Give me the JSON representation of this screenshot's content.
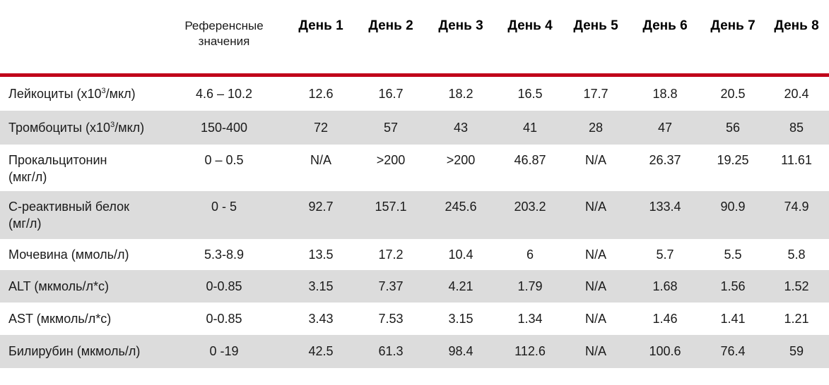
{
  "header": {
    "reference_label": "Референсные значения",
    "days": [
      "День 1",
      "День 2",
      "День 3",
      "День 4",
      "День 5",
      "День 6",
      "День 7",
      "День 8"
    ]
  },
  "rows": [
    {
      "label_pre": "Лейкоциты (x10",
      "label_sup": "3",
      "label_post": "/мкл)",
      "reference": "4.6 – 10.2",
      "values": [
        "12.6",
        "16.7",
        "18.2",
        "16.5",
        "17.7",
        "18.8",
        "20.5",
        "20.4"
      ]
    },
    {
      "label_pre": "Тромбоциты (x10",
      "label_sup": "3",
      "label_post": "/мкл)",
      "reference": "150-400",
      "values": [
        "72",
        "57",
        "43",
        "41",
        "28",
        "47",
        "56",
        "85"
      ]
    },
    {
      "label_line1": "Прокальцитонин",
      "label_line2": "(мкг/л)",
      "reference": "0 – 0.5",
      "values": [
        "N/A",
        ">200",
        ">200",
        "46.87",
        "N/A",
        "26.37",
        "19.25",
        "11.61"
      ]
    },
    {
      "label_line1": "С-реактивный белок",
      "label_line2": "(мг/л)",
      "reference": "0 - 5",
      "values": [
        "92.7",
        "157.1",
        "245.6",
        "203.2",
        "N/A",
        "133.4",
        "90.9",
        "74.9"
      ]
    },
    {
      "label": "Мочевина (ммоль/л)",
      "reference": "5.3-8.9",
      "values": [
        "13.5",
        "17.2",
        "10.4",
        "6",
        "N/A",
        "5.7",
        "5.5",
        "5.8"
      ]
    },
    {
      "label": "ALT (мкмоль/л*с)",
      "reference": "0-0.85",
      "values": [
        "3.15",
        "7.37",
        "4.21",
        "1.79",
        "N/A",
        "1.68",
        "1.56",
        "1.52"
      ]
    },
    {
      "label": "AST (мкмоль/л*с)",
      "reference": "0-0.85",
      "values": [
        "3.43",
        "7.53",
        "3.15",
        "1.34",
        "N/A",
        "1.46",
        "1.41",
        "1.21"
      ]
    },
    {
      "label": "Билирубин (мкмоль/л)",
      "reference": "0 -19",
      "values": [
        "42.5",
        "61.3",
        "98.4",
        "112.6",
        "N/A",
        "100.6",
        "76.4",
        "59"
      ]
    }
  ],
  "colors": {
    "accent_line": "#c0001a",
    "row_shade": "#dcdcdc"
  }
}
